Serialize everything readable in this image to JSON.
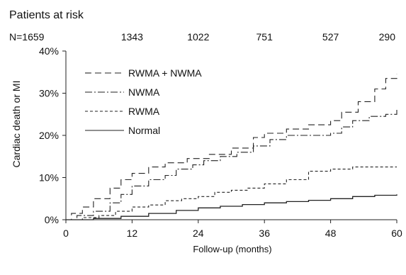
{
  "at_risk": {
    "title": "Patients at risk",
    "counts": [
      "N=1659",
      "1343",
      "1022",
      "751",
      "527",
      "290"
    ]
  },
  "chart_data": {
    "type": "line",
    "xlabel": "Follow-up (months)",
    "ylabel": "Cardiac death or MI",
    "xlim": [
      0,
      60
    ],
    "ylim": [
      0,
      40
    ],
    "xticks": [
      0,
      12,
      24,
      36,
      48,
      60
    ],
    "xtick_labels": [
      "0",
      "12",
      "24",
      "36",
      "48",
      "60"
    ],
    "yticks": [
      0,
      10,
      20,
      30,
      40
    ],
    "ytick_labels": [
      "0%",
      "10%",
      "20%",
      "30%",
      "40%"
    ],
    "grid": false,
    "legend_position": "top-left",
    "series": [
      {
        "name": "RWMA + NWMA",
        "dash": "long-dash",
        "x": [
          0,
          1,
          3,
          5,
          8,
          10,
          12,
          15,
          18,
          22,
          26,
          30,
          34,
          36,
          40,
          44,
          48,
          50,
          53,
          56,
          58,
          60
        ],
        "y": [
          0,
          1.5,
          3,
          5,
          7.5,
          9.5,
          11,
          12.5,
          13.5,
          14.5,
          15.5,
          17,
          19.5,
          20.5,
          21.5,
          22.5,
          23.5,
          25.5,
          28,
          31,
          33.5,
          34.5
        ]
      },
      {
        "name": "NWMA",
        "dash": "dash-dot",
        "x": [
          0,
          2,
          5,
          8,
          10,
          12,
          15,
          18,
          20,
          23,
          25,
          28,
          31,
          34,
          37,
          40,
          43,
          46,
          48,
          50,
          52,
          55,
          58,
          60
        ],
        "y": [
          0,
          1,
          2,
          4,
          6,
          8,
          9.5,
          10.5,
          12,
          13,
          14,
          15,
          16,
          17.5,
          19,
          20,
          20,
          20,
          20.5,
          22,
          23.5,
          24.5,
          25,
          26.5
        ]
      },
      {
        "name": "RWMA",
        "dash": "short-dash",
        "x": [
          0,
          3,
          6,
          9,
          12,
          15,
          18,
          21,
          24,
          27,
          30,
          33,
          36,
          40,
          44,
          48,
          52,
          56,
          60
        ],
        "y": [
          0,
          0.5,
          1,
          2,
          3,
          3.5,
          4.5,
          5,
          5.5,
          6.5,
          7,
          7.5,
          8.5,
          9.5,
          11.5,
          12,
          12.5,
          12.5,
          12.5
        ]
      },
      {
        "name": "Normal",
        "dash": "solid",
        "x": [
          0,
          5,
          10,
          15,
          20,
          24,
          28,
          32,
          36,
          40,
          44,
          48,
          52,
          56,
          60
        ],
        "y": [
          0,
          0.3,
          0.8,
          1.5,
          2.2,
          2.8,
          3.2,
          3.6,
          4,
          4.3,
          4.6,
          5,
          5.5,
          5.8,
          6
        ]
      }
    ]
  }
}
